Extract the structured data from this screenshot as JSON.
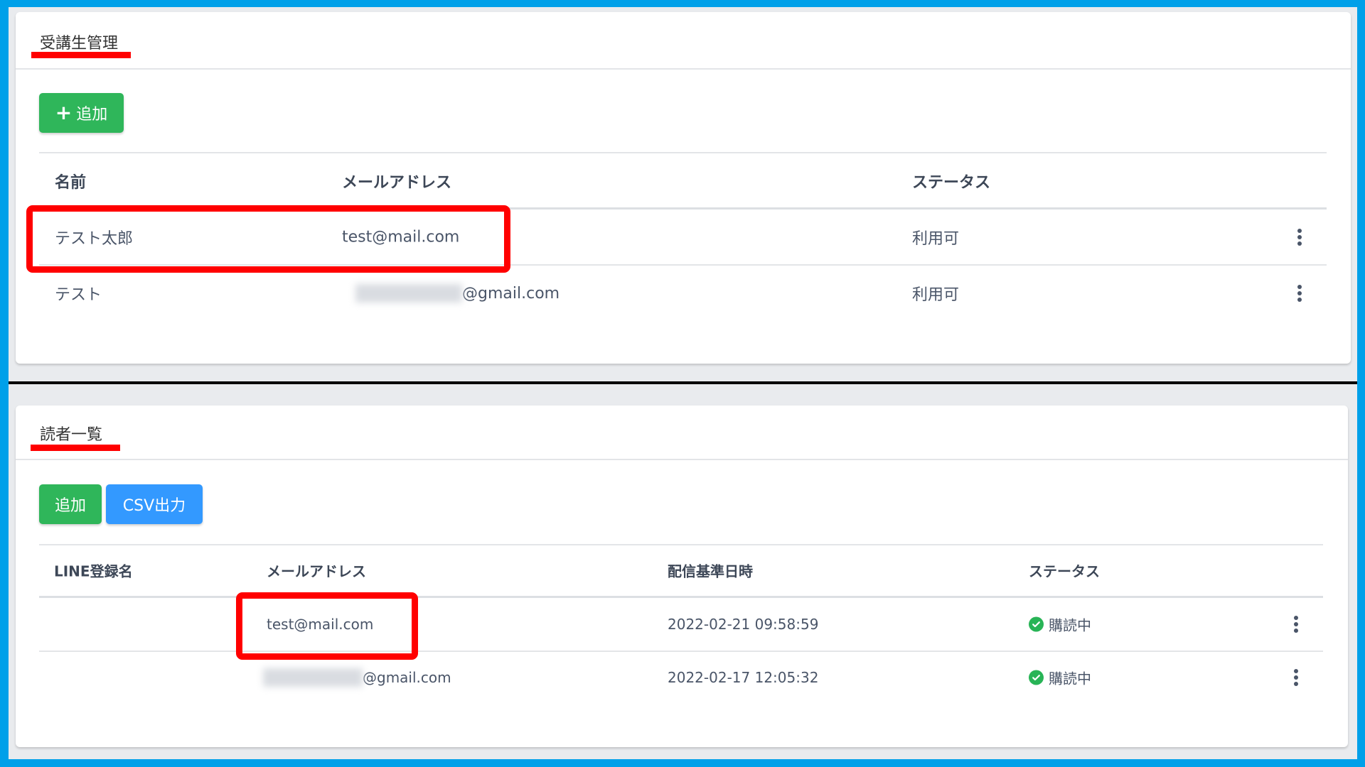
{
  "students": {
    "title": "受講生管理",
    "add_button": {
      "icon": "plus-icon",
      "label": "追加"
    },
    "columns": [
      "名前",
      "メールアドレス",
      "ステータス"
    ],
    "rows": [
      {
        "name": "テスト太郎",
        "email": "test@mail.com",
        "email_blurred": false,
        "status": "利用可"
      },
      {
        "name": "テスト",
        "email": "@gmail.com",
        "email_blurred": true,
        "status": "利用可"
      }
    ]
  },
  "readers": {
    "title": "読者一覧",
    "add_button": {
      "label": "追加"
    },
    "csv_button": {
      "label": "CSV出力"
    },
    "columns": [
      "LINE登録名",
      "メールアドレス",
      "配信基準日時",
      "ステータス"
    ],
    "rows": [
      {
        "line_name": "",
        "email": "test@mail.com",
        "email_blurred": false,
        "date": "2022-02-21 09:58:59",
        "status": "購読中",
        "status_icon": "check-circle-icon"
      },
      {
        "line_name": "",
        "email": "@gmail.com",
        "email_blurred": true,
        "date": "2022-02-17 12:05:32",
        "status": "購読中",
        "status_icon": "check-circle-icon"
      }
    ]
  },
  "colors": {
    "frame": "#00a0e9",
    "highlight": "#ff0000",
    "green_button": "#2fb65a",
    "blue_button": "#3399ff",
    "status_ok": "#28b456"
  }
}
